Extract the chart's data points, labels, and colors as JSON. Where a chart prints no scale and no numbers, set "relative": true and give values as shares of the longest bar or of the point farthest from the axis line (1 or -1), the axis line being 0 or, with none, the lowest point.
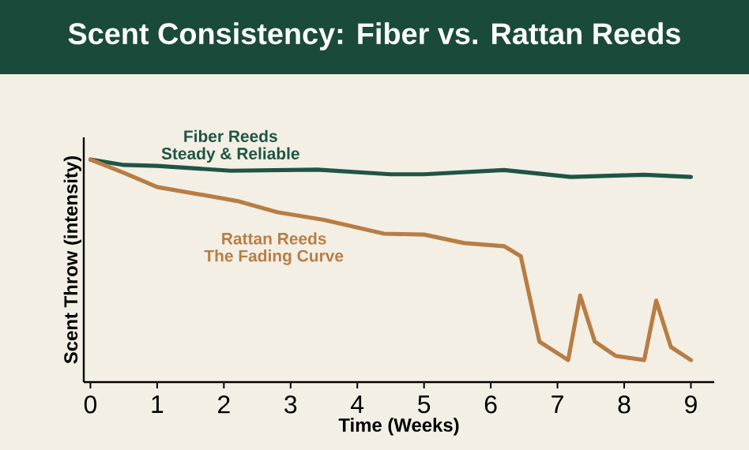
{
  "chart_data": {
    "type": "line",
    "title": "Scent Consistency: Fiber vs. Rattan Reeds",
    "xlabel": "Time (Weeks)",
    "ylabel": "Scent Throw (intensity)",
    "relative": true,
    "xlim": [
      -0.1,
      9.35
    ],
    "xticks": [
      0,
      1,
      2,
      3,
      4,
      5,
      6,
      7,
      8,
      9
    ],
    "annotations": [
      "Steady & Reliable",
      "The Fading Curve"
    ],
    "series": [
      {
        "name": "Fiber Reeds",
        "color": "#1f5446",
        "x": [
          0,
          0.5,
          1,
          2.1,
          3.4,
          4.5,
          5,
          6.2,
          7.2,
          8.3,
          9
        ],
        "values": [
          1,
          0.976,
          0.972,
          0.95,
          0.955,
          0.934,
          0.934,
          0.953,
          0.922,
          0.932,
          0.922
        ]
      },
      {
        "name": "Rattan Reeds",
        "color": "#b87d45",
        "x": [
          0,
          0.5,
          1,
          2.2,
          2.8,
          3.5,
          4.4,
          5,
          5.6,
          6.2,
          6.45,
          6.73,
          7.16,
          7.34,
          7.56,
          7.87,
          8.3,
          8.48,
          8.7,
          9
        ],
        "values": [
          1,
          0.941,
          0.877,
          0.814,
          0.764,
          0.729,
          0.667,
          0.663,
          0.625,
          0.611,
          0.566,
          0.182,
          0.099,
          0.389,
          0.182,
          0.118,
          0.099,
          0.366,
          0.158,
          0.099
        ]
      }
    ]
  }
}
